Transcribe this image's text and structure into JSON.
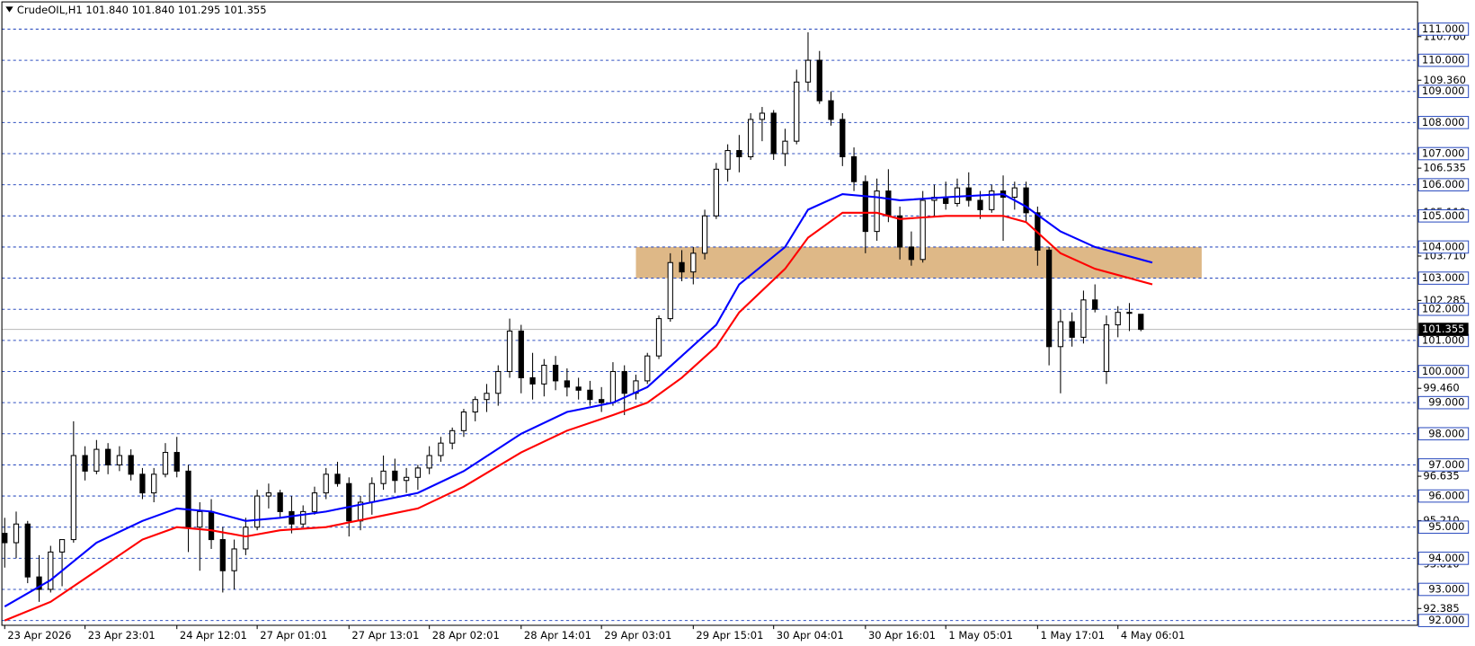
{
  "chart_data": {
    "type": "candlestick",
    "title": "CrudeOIL,H1  101.840 101.840 101.295 101.355",
    "categories": [
      "23 Apr 2026",
      null,
      null,
      null,
      null,
      null,
      null,
      "23 Apr 23:01",
      null,
      null,
      null,
      null,
      null,
      null,
      null,
      "24 Apr 12:01",
      null,
      null,
      null,
      null,
      null,
      null,
      "27 Apr 01:01",
      null,
      null,
      null,
      null,
      null,
      null,
      null,
      "27 Apr 13:01",
      null,
      null,
      null,
      null,
      null,
      null,
      "28 Apr 02:01",
      null,
      null,
      null,
      null,
      null,
      null,
      null,
      "28 Apr 14:01",
      null,
      null,
      null,
      null,
      null,
      null,
      "29 Apr 03:01",
      null,
      null,
      null,
      null,
      null,
      null,
      null,
      "29 Apr 15:01",
      null,
      null,
      null,
      null,
      null,
      null,
      "30 Apr 04:01",
      null,
      null,
      null,
      null,
      null,
      null,
      null,
      "30 Apr 16:01",
      null,
      null,
      null,
      null,
      null,
      null,
      "1 May 05:01",
      null,
      null,
      null,
      null,
      null,
      null,
      null,
      "1 May 17:01",
      null,
      null,
      null,
      null,
      null,
      null,
      "4 May 06:01",
      null,
      null
    ],
    "candles": [
      [
        94.8,
        95.3,
        93.7,
        94.5
      ],
      [
        94.5,
        95.5,
        94.0,
        95.1
      ],
      [
        95.1,
        95.2,
        93.2,
        93.4
      ],
      [
        93.4,
        94.1,
        92.6,
        93.0
      ],
      [
        93.0,
        94.4,
        92.9,
        94.2
      ],
      [
        94.2,
        94.6,
        93.1,
        94.6
      ],
      [
        94.6,
        98.4,
        94.5,
        97.3
      ],
      [
        97.3,
        97.6,
        96.5,
        96.8
      ],
      [
        96.8,
        97.8,
        96.7,
        97.5
      ],
      [
        97.5,
        97.7,
        96.7,
        97.0
      ],
      [
        97.0,
        97.6,
        96.8,
        97.3
      ],
      [
        97.3,
        97.5,
        96.5,
        96.7
      ],
      [
        96.7,
        96.9,
        95.9,
        96.1
      ],
      [
        96.1,
        96.9,
        95.8,
        96.7
      ],
      [
        96.7,
        97.7,
        96.6,
        97.4
      ],
      [
        97.4,
        97.9,
        96.6,
        96.8
      ],
      [
        96.8,
        97.0,
        94.2,
        95.0
      ],
      [
        95.0,
        95.8,
        93.6,
        95.5
      ],
      [
        95.5,
        95.9,
        94.3,
        94.6
      ],
      [
        94.6,
        95.0,
        92.9,
        93.6
      ],
      [
        93.6,
        94.6,
        93.0,
        94.3
      ],
      [
        94.3,
        95.3,
        94.1,
        95.0
      ],
      [
        95.0,
        96.2,
        94.9,
        96.0
      ],
      [
        96.0,
        96.4,
        95.6,
        96.1
      ],
      [
        96.1,
        96.2,
        95.3,
        95.5
      ],
      [
        95.5,
        96.0,
        94.8,
        95.1
      ],
      [
        95.1,
        95.7,
        95.0,
        95.5
      ],
      [
        95.5,
        96.3,
        95.4,
        96.1
      ],
      [
        96.1,
        96.9,
        95.9,
        96.7
      ],
      [
        96.7,
        97.1,
        96.3,
        96.4
      ],
      [
        96.4,
        96.6,
        94.7,
        95.2
      ],
      [
        95.2,
        96.0,
        94.9,
        95.8
      ],
      [
        95.8,
        96.6,
        95.4,
        96.4
      ],
      [
        96.4,
        97.3,
        96.2,
        96.8
      ],
      [
        96.8,
        97.2,
        96.1,
        96.5
      ],
      [
        96.5,
        96.9,
        96.1,
        96.6
      ],
      [
        96.6,
        97.0,
        96.2,
        96.9
      ],
      [
        96.9,
        97.6,
        96.7,
        97.3
      ],
      [
        97.3,
        97.9,
        97.1,
        97.7
      ],
      [
        97.7,
        98.2,
        97.5,
        98.1
      ],
      [
        98.1,
        98.8,
        97.9,
        98.7
      ],
      [
        98.7,
        99.2,
        98.4,
        99.1
      ],
      [
        99.1,
        99.6,
        98.7,
        99.3
      ],
      [
        99.3,
        100.2,
        98.9,
        100.0
      ],
      [
        100.0,
        101.7,
        99.8,
        101.3
      ],
      [
        101.3,
        101.5,
        99.3,
        99.8
      ],
      [
        99.8,
        100.6,
        99.1,
        99.6
      ],
      [
        99.6,
        100.4,
        99.2,
        100.2
      ],
      [
        100.2,
        100.5,
        99.4,
        99.7
      ],
      [
        99.7,
        100.1,
        99.2,
        99.5
      ],
      [
        99.5,
        99.8,
        99.1,
        99.4
      ],
      [
        99.4,
        99.7,
        98.9,
        99.1
      ],
      [
        99.1,
        99.5,
        98.7,
        99.0
      ],
      [
        99.0,
        100.3,
        98.9,
        100.0
      ],
      [
        100.0,
        100.2,
        98.6,
        99.3
      ],
      [
        99.3,
        99.9,
        99.1,
        99.7
      ],
      [
        99.7,
        100.6,
        99.6,
        100.5
      ],
      [
        100.5,
        101.8,
        100.4,
        101.7
      ],
      [
        101.7,
        103.8,
        101.6,
        103.5
      ],
      [
        103.5,
        103.9,
        102.9,
        103.2
      ],
      [
        103.2,
        104.0,
        102.8,
        103.8
      ],
      [
        103.8,
        105.2,
        103.6,
        105.0
      ],
      [
        105.0,
        106.7,
        104.9,
        106.5
      ],
      [
        106.5,
        107.3,
        106.1,
        107.1
      ],
      [
        107.1,
        107.6,
        106.4,
        106.9
      ],
      [
        106.9,
        108.3,
        106.8,
        108.1
      ],
      [
        108.1,
        108.5,
        107.4,
        108.3
      ],
      [
        108.3,
        108.4,
        106.8,
        107.0
      ],
      [
        107.0,
        107.8,
        106.6,
        107.4
      ],
      [
        107.4,
        109.7,
        107.3,
        109.3
      ],
      [
        109.3,
        110.9,
        109.0,
        110.0
      ],
      [
        110.0,
        110.3,
        108.6,
        108.7
      ],
      [
        108.7,
        109.0,
        107.9,
        108.1
      ],
      [
        108.1,
        108.3,
        106.6,
        106.9
      ],
      [
        106.9,
        107.2,
        105.8,
        106.1
      ],
      [
        106.1,
        106.3,
        103.8,
        104.5
      ],
      [
        104.5,
        106.2,
        104.2,
        105.8
      ],
      [
        105.8,
        106.5,
        104.8,
        105.0
      ],
      [
        105.0,
        105.3,
        103.6,
        104.0
      ],
      [
        104.0,
        104.5,
        103.4,
        103.6
      ],
      [
        103.6,
        105.8,
        103.5,
        105.5
      ],
      [
        105.5,
        106.0,
        105.0,
        105.6
      ],
      [
        105.6,
        106.1,
        105.2,
        105.4
      ],
      [
        105.4,
        106.2,
        105.3,
        105.9
      ],
      [
        105.9,
        106.4,
        105.3,
        105.5
      ],
      [
        105.5,
        105.8,
        104.9,
        105.2
      ],
      [
        105.2,
        106.0,
        105.1,
        105.8
      ],
      [
        105.8,
        106.3,
        104.2,
        105.6
      ],
      [
        105.6,
        106.1,
        105.2,
        105.9
      ],
      [
        105.9,
        106.1,
        104.8,
        105.1
      ],
      [
        105.1,
        105.3,
        103.4,
        103.9
      ],
      [
        103.9,
        104.0,
        100.2,
        100.8
      ],
      [
        100.8,
        102.0,
        99.3,
        101.6
      ],
      [
        101.6,
        101.9,
        100.8,
        101.1
      ],
      [
        101.1,
        102.6,
        100.9,
        102.3
      ],
      [
        102.3,
        102.8,
        101.9,
        102.0
      ],
      [
        100.0,
        101.8,
        99.6,
        101.5
      ],
      [
        101.5,
        102.1,
        101.1,
        101.9
      ],
      [
        101.9,
        102.2,
        101.3,
        101.9
      ],
      [
        101.84,
        101.84,
        101.295,
        101.355
      ]
    ],
    "lines": [
      {
        "color": "#0000ff",
        "x": [
          0,
          4,
          8,
          12,
          15,
          18,
          21,
          24,
          28,
          32,
          36,
          40,
          45,
          49,
          53,
          56,
          59,
          62,
          64,
          68,
          70,
          73,
          76,
          78,
          82,
          87,
          89,
          92,
          95,
          100
        ],
        "values": [
          92.45,
          93.3,
          94.5,
          95.2,
          95.6,
          95.5,
          95.2,
          95.3,
          95.5,
          95.8,
          96.1,
          96.8,
          98.0,
          98.7,
          99.0,
          99.5,
          100.5,
          101.5,
          102.8,
          104.0,
          105.2,
          105.7,
          105.6,
          105.5,
          105.6,
          105.7,
          105.3,
          104.5,
          104.0,
          103.5
        ]
      },
      {
        "color": "#ff0000",
        "x": [
          0,
          4,
          8,
          12,
          15,
          18,
          21,
          24,
          28,
          32,
          36,
          40,
          45,
          49,
          53,
          56,
          59,
          62,
          64,
          68,
          70,
          73,
          76,
          78,
          82,
          87,
          89,
          92,
          95,
          100
        ],
        "values": [
          92.0,
          92.6,
          93.6,
          94.6,
          95.0,
          94.9,
          94.7,
          94.9,
          95.0,
          95.3,
          95.6,
          96.3,
          97.4,
          98.1,
          98.6,
          99.0,
          99.8,
          100.8,
          101.9,
          103.3,
          104.3,
          105.1,
          105.1,
          104.9,
          105.0,
          105.0,
          104.8,
          103.8,
          103.3,
          102.8
        ]
      }
    ],
    "zone": {
      "x": [
        55,
        104.3
      ],
      "y": [
        103,
        104
      ],
      "color": "#deb887"
    },
    "ylim": [
      91.846,
      111.876
    ],
    "yticks": [
      {
        "value": 92.385,
        "label": "92.385"
      },
      {
        "value": 93.81,
        "label": "93.810"
      },
      {
        "value": 95.21,
        "label": "95.210"
      },
      {
        "value": 96.635,
        "label": "96.635"
      },
      {
        "value": 99.46,
        "label": "99.460"
      },
      {
        "value": 102.285,
        "label": "102.285"
      },
      {
        "value": 103.71,
        "label": "103.710"
      },
      {
        "value": 105.11,
        "label": "105.110"
      },
      {
        "value": 106.535,
        "label": "106.535"
      },
      {
        "value": 109.36,
        "label": "109.360"
      },
      {
        "value": 110.76,
        "label": "110.760"
      }
    ],
    "levels": [
      {
        "value": 92,
        "label": "92.000"
      },
      {
        "value": 93,
        "label": "93.000"
      },
      {
        "value": 94,
        "label": "94.000"
      },
      {
        "value": 95,
        "label": "95.000"
      },
      {
        "value": 96,
        "label": "96.000"
      },
      {
        "value": 97,
        "label": "97.000"
      },
      {
        "value": 98,
        "label": "98.000"
      },
      {
        "value": 99,
        "label": "99.000"
      },
      {
        "value": 100,
        "label": "100.000"
      },
      {
        "value": 101,
        "label": "101.000"
      },
      {
        "value": 102,
        "label": "102.000"
      },
      {
        "value": 103,
        "label": "103.000"
      },
      {
        "value": 104,
        "label": "104.000"
      },
      {
        "value": 105,
        "label": "105.000"
      },
      {
        "value": 106,
        "label": "106.000"
      },
      {
        "value": 107,
        "label": "107.000"
      },
      {
        "value": 108,
        "label": "108.000"
      },
      {
        "value": 109,
        "label": "109.000"
      },
      {
        "value": 110,
        "label": "110.000"
      },
      {
        "value": 111,
        "label": "111.000"
      }
    ],
    "level_color": "#3050c0",
    "current_price": {
      "value": 101.355,
      "label": "101.355"
    }
  }
}
